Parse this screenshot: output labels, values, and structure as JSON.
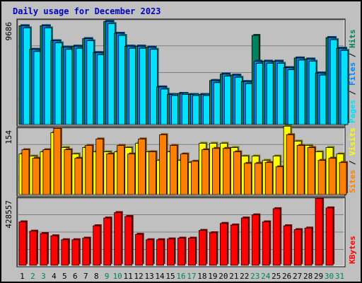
{
  "chart_data": {
    "type": "bar",
    "title": "Daily usage for December 2023",
    "colors": {
      "hits": "#00805c",
      "files": "#0080ff",
      "pages": "#00e0ff",
      "visits": "#ffff00",
      "sites": "#ff8000",
      "kbytes": "#ff0000",
      "weekend_label": "#00805c",
      "weekday_label": "#000000",
      "panel_bg": "#c0c0c0",
      "grid": "#808080"
    },
    "categories": [
      "1",
      "2",
      "3",
      "4",
      "5",
      "6",
      "7",
      "8",
      "9",
      "10",
      "11",
      "12",
      "13",
      "14",
      "15",
      "16",
      "17",
      "18",
      "19",
      "20",
      "21",
      "22",
      "23",
      "24",
      "25",
      "26",
      "27",
      "28",
      "29",
      "30",
      "31"
    ],
    "weekend_days": [
      "2",
      "3",
      "9",
      "10",
      "16",
      "17",
      "23",
      "24",
      "30",
      "31"
    ],
    "panels": [
      {
        "name": "top",
        "ymax_label": "9686",
        "ylim": [
          0,
          9686
        ],
        "legend": [
          {
            "text": "Pages",
            "color": "#00e0ff"
          },
          {
            "text": " / ",
            "color": "#000000"
          },
          {
            "text": "Files",
            "color": "#0080ff"
          },
          {
            "text": " / ",
            "color": "#000000"
          },
          {
            "text": "Hits",
            "color": "#00805c"
          }
        ],
        "series": [
          {
            "name": "Hits",
            "color": "#00805c",
            "values": [
              9200,
              7000,
              9200,
              7800,
              7200,
              7300,
              8000,
              6700,
              9600,
              8500,
              7300,
              7300,
              7200,
              3500,
              2800,
              2900,
              2800,
              2800,
              4100,
              4700,
              4600,
              4000,
              8300,
              5900,
              5900,
              5300,
              6200,
              6100,
              4800,
              8100,
              7100
            ]
          },
          {
            "name": "Files",
            "color": "#0080ff",
            "values": [
              9200,
              7000,
              9200,
              7800,
              7200,
              7300,
              8000,
              6700,
              9600,
              8500,
              7300,
              7300,
              7200,
              3500,
              2800,
              2900,
              2800,
              2800,
              4100,
              4700,
              4600,
              4000,
              5900,
              5900,
              5900,
              5300,
              6200,
              6100,
              4800,
              8100,
              7100
            ]
          },
          {
            "name": "Pages",
            "color": "#00e0ff",
            "values": [
              9000,
              6800,
              9000,
              7600,
              7000,
              7100,
              7800,
              6500,
              9400,
              8300,
              7100,
              7100,
              7000,
              3300,
              2700,
              2800,
              2700,
              2700,
              3900,
              4500,
              4400,
              3800,
              5700,
              5700,
              5700,
              5100,
              6000,
              5900,
              4600,
              7900,
              6900
            ]
          }
        ]
      },
      {
        "name": "middle",
        "ymax_label": "154",
        "ylim": [
          0,
          154
        ],
        "legend": [
          {
            "text": "Sites",
            "color": "#ff8000"
          },
          {
            "text": " / ",
            "color": "#000000"
          },
          {
            "text": "Visits",
            "color": "#ffff00"
          }
        ],
        "series": [
          {
            "name": "Visits",
            "color": "#ffff00",
            "values": [
              95,
              90,
              100,
              145,
              110,
              95,
              110,
              100,
              100,
              100,
              110,
              120,
              100,
              80,
              100,
              80,
              75,
              120,
              120,
              120,
              110,
              90,
              90,
              80,
              90,
              160,
              125,
              115,
              100,
              110,
              95
            ]
          },
          {
            "name": "Sites",
            "color": "#ff8000",
            "values": [
              105,
              85,
              105,
              155,
              105,
              85,
              115,
              130,
              95,
              115,
              95,
              130,
              100,
              140,
              115,
              95,
              78,
              105,
              108,
              108,
              100,
              73,
              73,
              75,
              65,
              140,
              115,
              110,
              80,
              85,
              75
            ]
          }
        ]
      },
      {
        "name": "bottom",
        "ymax_label": "428557",
        "ylim": [
          0,
          428557
        ],
        "legend": [
          {
            "text": "KBytes",
            "color": "#ff0000"
          }
        ],
        "series": [
          {
            "name": "KBytes",
            "color": "#ff0000",
            "values": [
              280000,
              220000,
              205000,
              190000,
              165000,
              165000,
              175000,
              255000,
              305000,
              340000,
              315000,
              200000,
              165000,
              165000,
              170000,
              175000,
              175000,
              225000,
              210000,
              270000,
              260000,
              305000,
              325000,
              280000,
              365000,
              255000,
              230000,
              240000,
              430000,
              370000,
              0
            ]
          }
        ]
      }
    ]
  }
}
